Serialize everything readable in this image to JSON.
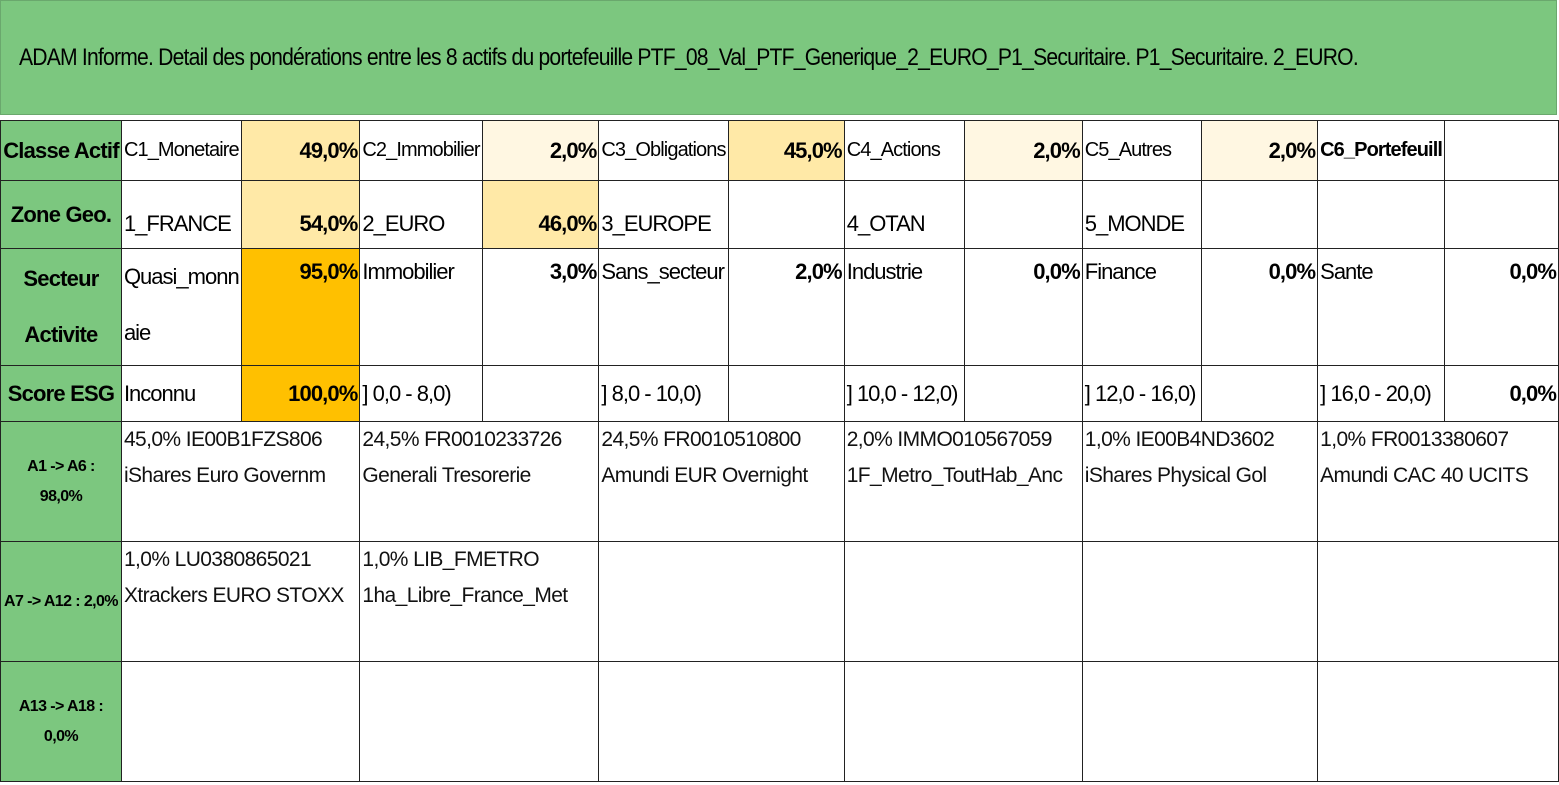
{
  "title": "ADAM Informe. Detail des pondérations entre les 8 actifs du portefeuille PTF_08_Val_PTF_Generique_2_EURO_P1_Securitaire. P1_Securitaire. 2_EURO.",
  "colors": {
    "header_green": "#7cc77f",
    "weight_light": "#fff7e2",
    "weight_mid": "#ffe9a7",
    "weight_strong": "#ffc000"
  },
  "rows": {
    "classe_actif": {
      "header": "Classe Actif",
      "cells": [
        {
          "label": "C1_Monetaire",
          "value": "49,0%"
        },
        {
          "label": "C2_Immobilier",
          "value": "2,0%"
        },
        {
          "label": "C3_Obligations",
          "value": "45,0%"
        },
        {
          "label": "C4_Actions",
          "value": "2,0%"
        },
        {
          "label": "C5_Autres",
          "value": "2,0%"
        },
        {
          "label": "C6_Portefeuill",
          "value": ""
        }
      ]
    },
    "zone_geo": {
      "header": "Zone Geo.",
      "cells": [
        {
          "label": "1_FRANCE",
          "value": "54,0%"
        },
        {
          "label": "2_EURO",
          "value": "46,0%"
        },
        {
          "label": "3_EUROPE",
          "value": ""
        },
        {
          "label": "4_OTAN",
          "value": ""
        },
        {
          "label": "5_MONDE",
          "value": ""
        },
        {
          "label": "",
          "value": ""
        }
      ]
    },
    "secteur_activite": {
      "header_line1": "Secteur",
      "header_line2": "Activite",
      "cells": [
        {
          "label_line1": "Quasi_monn",
          "label_line2": "aie",
          "value": "95,0%"
        },
        {
          "label_line1": "Immobilier",
          "label_line2": "",
          "value": "3,0%"
        },
        {
          "label_line1": "Sans_secteur",
          "label_line2": "",
          "value": "2,0%"
        },
        {
          "label_line1": "Industrie",
          "label_line2": "",
          "value": "0,0%"
        },
        {
          "label_line1": "Finance",
          "label_line2": "",
          "value": "0,0%"
        },
        {
          "label_line1": "Sante",
          "label_line2": "",
          "value": "0,0%"
        }
      ]
    },
    "score_esg": {
      "header": "Score ESG",
      "cells": [
        {
          "label": "Inconnu",
          "value": "100,0%"
        },
        {
          "label": "] 0,0 - 8,0)",
          "value": ""
        },
        {
          "label": "] 8,0 - 10,0)",
          "value": ""
        },
        {
          "label": "] 10,0 - 12,0)",
          "value": ""
        },
        {
          "label": "] 12,0 - 16,0)",
          "value": ""
        },
        {
          "label": "] 16,0 - 20,0)",
          "value": "0,0%"
        }
      ]
    }
  },
  "asset_groups": [
    {
      "header_line1": "A1 -> A6 :",
      "header_line2": "98,0%",
      "assets": [
        {
          "line1": "45,0% IE00B1FZS806",
          "line2": "iShares Euro Governm"
        },
        {
          "line1": "24,5% FR0010233726",
          "line2": "Generali Tresorerie"
        },
        {
          "line1": "24,5% FR0010510800",
          "line2": "Amundi EUR Overnight"
        },
        {
          "line1": "2,0% IMMO010567059",
          "line2": "1F_Metro_ToutHab_Anc"
        },
        {
          "line1": "1,0% IE00B4ND3602",
          "line2": "iShares Physical Gol"
        },
        {
          "line1": "1,0% FR0013380607",
          "line2": "Amundi CAC 40 UCITS"
        }
      ]
    },
    {
      "header_line1": "A7 -> A12 : 2,0%",
      "header_line2": "",
      "assets": [
        {
          "line1": "1,0% LU0380865021",
          "line2": "Xtrackers EURO STOXX"
        },
        {
          "line1": "1,0% LIB_FMETRO",
          "line2": "1ha_Libre_France_Met"
        },
        {
          "line1": "",
          "line2": ""
        },
        {
          "line1": "",
          "line2": ""
        },
        {
          "line1": "",
          "line2": ""
        },
        {
          "line1": "",
          "line2": ""
        }
      ]
    },
    {
      "header_line1": "A13 -> A18 :",
      "header_line2": "0,0%",
      "assets": [
        {
          "line1": "",
          "line2": ""
        },
        {
          "line1": "",
          "line2": ""
        },
        {
          "line1": "",
          "line2": ""
        },
        {
          "line1": "",
          "line2": ""
        },
        {
          "line1": "",
          "line2": ""
        },
        {
          "line1": "",
          "line2": ""
        }
      ]
    }
  ]
}
